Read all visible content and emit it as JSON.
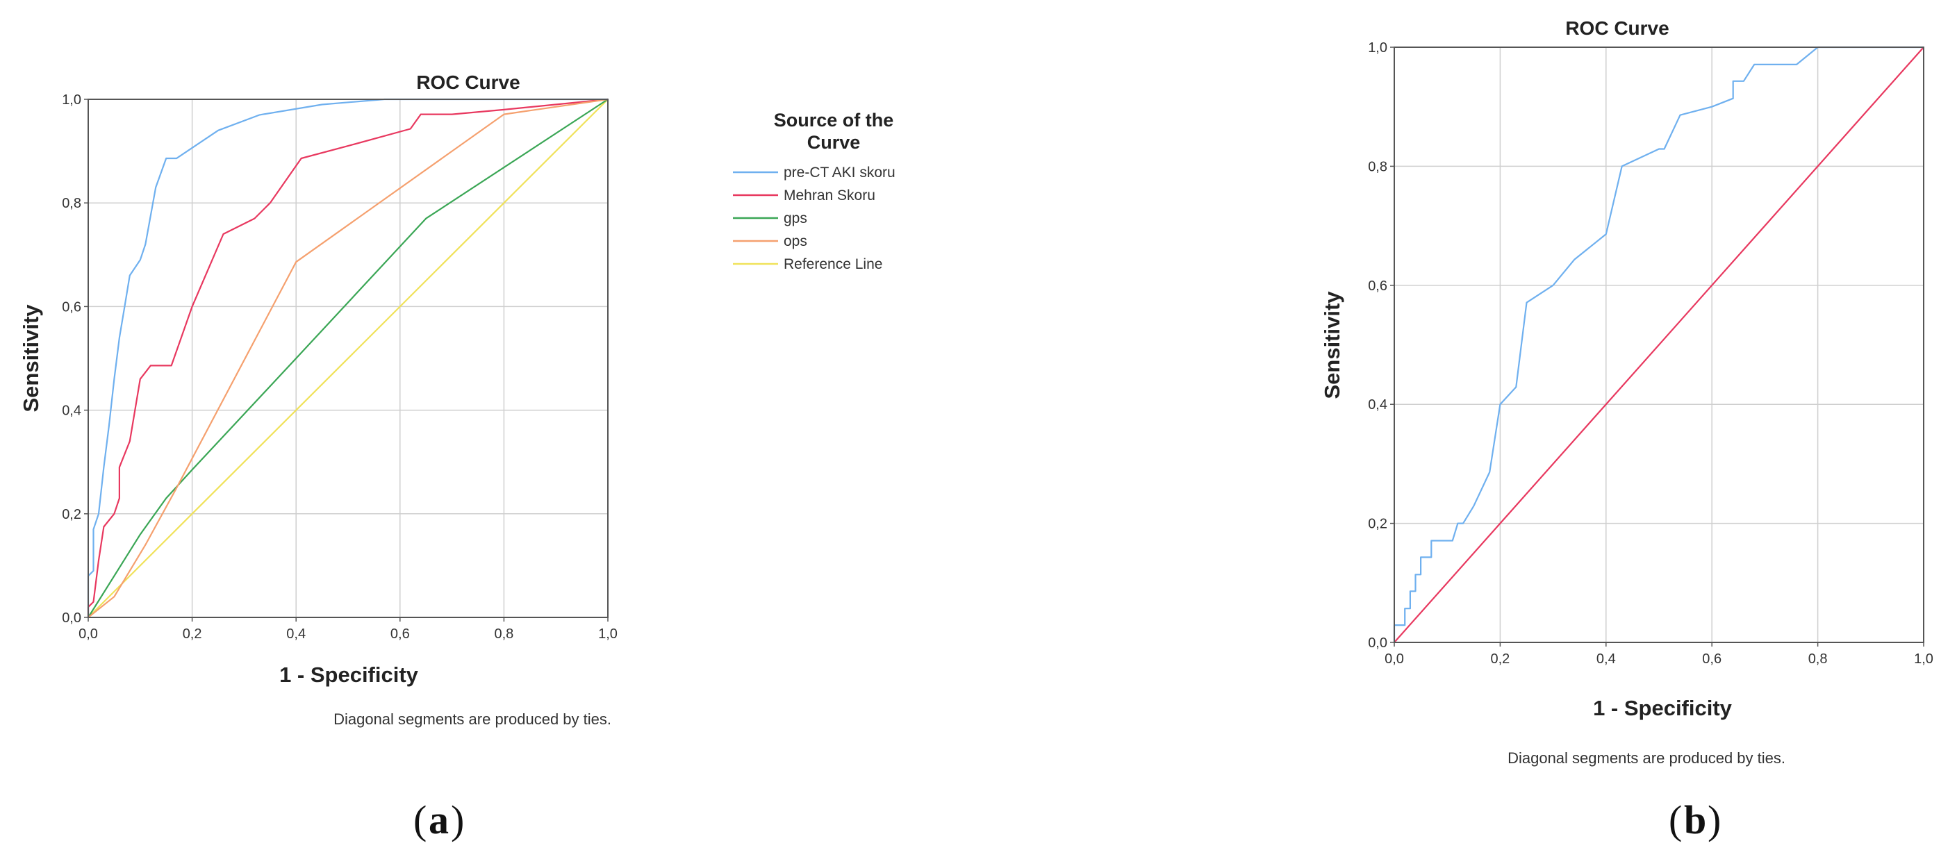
{
  "chart_data": [
    {
      "type": "line",
      "panel_caption": {
        "open": "(",
        "letter": "a",
        "close": ")"
      },
      "title": "ROC Curve",
      "xlabel": "1 - Specificity",
      "ylabel": "Sensitivity",
      "note": "Diagonal segments are produced by ties.",
      "xlim": [
        0,
        1
      ],
      "ylim": [
        0,
        1
      ],
      "grid": true,
      "xticks": [
        "0,0",
        "0,2",
        "0,4",
        "0,6",
        "0,8",
        "1,0"
      ],
      "yticks": [
        "0,0",
        "0,2",
        "0,4",
        "0,6",
        "0,8",
        "1,0"
      ],
      "legend": {
        "title_lines": [
          "Source of the",
          "Curve"
        ],
        "placement": "right"
      },
      "series": [
        {
          "name": "pre-CT AKI skoru",
          "color": "#6fb0ef",
          "points": [
            [
              0,
              0
            ],
            [
              0,
              0.08
            ],
            [
              0.01,
              0.09
            ],
            [
              0.01,
              0.17
            ],
            [
              0.02,
              0.2
            ],
            [
              0.03,
              0.29
            ],
            [
              0.04,
              0.37
            ],
            [
              0.05,
              0.46
            ],
            [
              0.06,
              0.54
            ],
            [
              0.07,
              0.6
            ],
            [
              0.08,
              0.66
            ],
            [
              0.1,
              0.69
            ],
            [
              0.11,
              0.72
            ],
            [
              0.13,
              0.83
            ],
            [
              0.15,
              0.886
            ],
            [
              0.17,
              0.886
            ],
            [
              0.25,
              0.94
            ],
            [
              0.33,
              0.97
            ],
            [
              0.45,
              0.99
            ],
            [
              0.57,
              1.0
            ],
            [
              1,
              1
            ]
          ]
        },
        {
          "name": "Mehran Skoru",
          "color": "#e8385f",
          "points": [
            [
              0,
              0
            ],
            [
              0,
              0.02
            ],
            [
              0.01,
              0.03
            ],
            [
              0.02,
              0.11
            ],
            [
              0.03,
              0.175
            ],
            [
              0.05,
              0.2
            ],
            [
              0.06,
              0.23
            ],
            [
              0.06,
              0.29
            ],
            [
              0.08,
              0.34
            ],
            [
              0.1,
              0.46
            ],
            [
              0.12,
              0.486
            ],
            [
              0.14,
              0.486
            ],
            [
              0.16,
              0.486
            ],
            [
              0.2,
              0.6
            ],
            [
              0.26,
              0.74
            ],
            [
              0.32,
              0.77
            ],
            [
              0.35,
              0.8
            ],
            [
              0.41,
              0.886
            ],
            [
              0.5,
              0.91
            ],
            [
              0.62,
              0.943
            ],
            [
              0.64,
              0.971
            ],
            [
              0.7,
              0.971
            ],
            [
              0.8,
              0.98
            ],
            [
              1,
              1
            ]
          ]
        },
        {
          "name": "gps",
          "color": "#3aa655",
          "points": [
            [
              0,
              0
            ],
            [
              0.05,
              0.08
            ],
            [
              0.1,
              0.16
            ],
            [
              0.15,
              0.23
            ],
            [
              0.2,
              0.285
            ],
            [
              0.4,
              0.5
            ],
            [
              0.65,
              0.77
            ],
            [
              1,
              1
            ]
          ]
        },
        {
          "name": "ops",
          "color": "#f5a06e",
          "points": [
            [
              0,
              0
            ],
            [
              0.05,
              0.04
            ],
            [
              0.11,
              0.14
            ],
            [
              0.17,
              0.25
            ],
            [
              0.4,
              0.686
            ],
            [
              0.8,
              0.971
            ],
            [
              1,
              1
            ]
          ]
        },
        {
          "name": "Reference Line",
          "color": "#f0e25a",
          "points": [
            [
              0,
              0
            ],
            [
              1,
              1
            ]
          ]
        }
      ]
    },
    {
      "type": "line",
      "panel_caption": {
        "open": "(",
        "letter": "b",
        "close": ")"
      },
      "title": "ROC Curve",
      "xlabel": "1 - Specificity",
      "ylabel": "Sensitivity",
      "note": "Diagonal segments are produced by ties.",
      "xlim": [
        0,
        1
      ],
      "ylim": [
        0,
        1
      ],
      "grid": true,
      "xticks": [
        "0,0",
        "0,2",
        "0,4",
        "0,6",
        "0,8",
        "1,0"
      ],
      "yticks": [
        "0,0",
        "0,2",
        "0,4",
        "0,6",
        "0,8",
        "1,0"
      ],
      "series": [
        {
          "color": "#6fb0ef",
          "points": [
            [
              0,
              0
            ],
            [
              0,
              0.029
            ],
            [
              0.02,
              0.029
            ],
            [
              0.02,
              0.057
            ],
            [
              0.03,
              0.057
            ],
            [
              0.03,
              0.086
            ],
            [
              0.04,
              0.086
            ],
            [
              0.04,
              0.114
            ],
            [
              0.05,
              0.114
            ],
            [
              0.05,
              0.143
            ],
            [
              0.07,
              0.143
            ],
            [
              0.07,
              0.171
            ],
            [
              0.11,
              0.171
            ],
            [
              0.12,
              0.2
            ],
            [
              0.13,
              0.2
            ],
            [
              0.15,
              0.229
            ],
            [
              0.18,
              0.286
            ],
            [
              0.2,
              0.4
            ],
            [
              0.23,
              0.429
            ],
            [
              0.25,
              0.571
            ],
            [
              0.3,
              0.6
            ],
            [
              0.34,
              0.643
            ],
            [
              0.4,
              0.686
            ],
            [
              0.43,
              0.8
            ],
            [
              0.5,
              0.829
            ],
            [
              0.51,
              0.829
            ],
            [
              0.54,
              0.886
            ],
            [
              0.6,
              0.9
            ],
            [
              0.64,
              0.914
            ],
            [
              0.64,
              0.943
            ],
            [
              0.66,
              0.943
            ],
            [
              0.68,
              0.971
            ],
            [
              0.76,
              0.971
            ],
            [
              0.8,
              1.0
            ],
            [
              1,
              1
            ]
          ]
        },
        {
          "color": "#e8385f",
          "points": [
            [
              0,
              0
            ],
            [
              1,
              1
            ]
          ]
        }
      ]
    }
  ]
}
